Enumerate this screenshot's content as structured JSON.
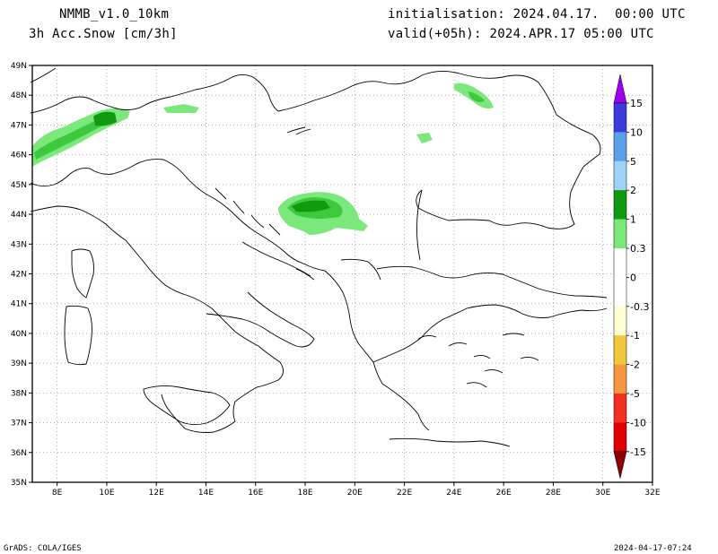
{
  "header": {
    "model": "NMMB_v1.0_10km",
    "variable": "3h Acc.Snow [cm/3h]",
    "init": "initialisation: 2024.04.17.  00:00 UTC",
    "valid": "valid(+05h): 2024.APR.17 05:00 UTC"
  },
  "map": {
    "lat_labels": [
      "49N",
      "48N",
      "47N",
      "46N",
      "45N",
      "44N",
      "43N",
      "42N",
      "41N",
      "40N",
      "39N",
      "38N",
      "37N",
      "36N",
      "35N"
    ],
    "lon_labels": [
      "8E",
      "10E",
      "12E",
      "14E",
      "16E",
      "18E",
      "20E",
      "22E",
      "24E",
      "26E",
      "28E",
      "30E",
      "32E"
    ]
  },
  "colorbar": {
    "levels": [
      {
        "label": "15",
        "color": "#a000f0"
      },
      {
        "label": "10",
        "color": "#3c3cdc"
      },
      {
        "label": "5",
        "color": "#5aa0e6"
      },
      {
        "label": "2",
        "color": "#a0d2f8"
      },
      {
        "label": "1",
        "color": "#0f9a0f"
      },
      {
        "label": "0.3",
        "color": "#3ec83e"
      },
      {
        "label": "0",
        "color": "#7ae87a"
      },
      {
        "label": "-0.3",
        "color": "#ffffff"
      },
      {
        "label": "-1",
        "color": "#ffffd2"
      },
      {
        "label": "-2",
        "color": "#f0c83c"
      },
      {
        "label": "-5",
        "color": "#f59640"
      },
      {
        "label": "-10",
        "color": "#f05030"
      },
      {
        "label": "-15",
        "color": "#e00000"
      }
    ],
    "tip_bottom_color": "#8c0000",
    "tip_bottom_under": "#b40000"
  },
  "footer": {
    "left": "GrADS: COLA/IGES",
    "right": "2024-04-17-07:24"
  }
}
